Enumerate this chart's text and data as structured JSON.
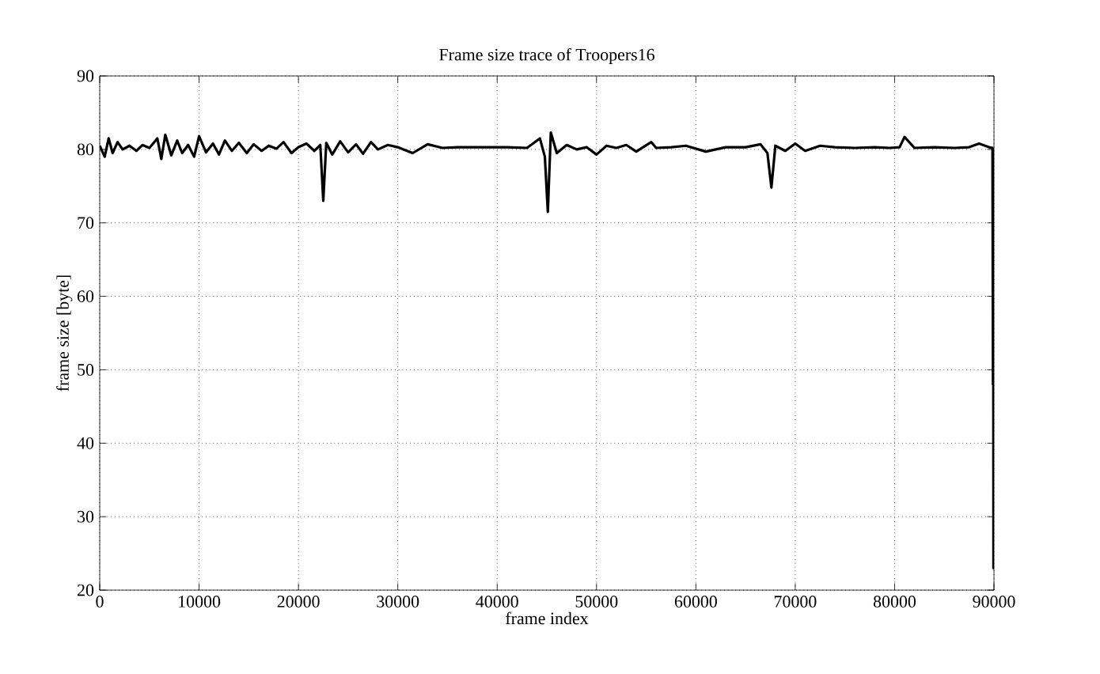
{
  "chart_data": {
    "type": "line",
    "title": "Frame size trace of Troopers16",
    "xlabel": "frame index",
    "ylabel": "frame size [byte]",
    "xlim": [
      0,
      90000
    ],
    "ylim": [
      20,
      90
    ],
    "xticks": [
      0,
      10000,
      20000,
      30000,
      40000,
      50000,
      60000,
      70000,
      80000,
      90000
    ],
    "yticks": [
      20,
      30,
      40,
      50,
      60,
      70,
      80,
      90
    ],
    "grid": true,
    "marker": "none",
    "line_style": "solid",
    "series": [
      {
        "color": "#000000",
        "x": [
          0,
          500,
          900,
          1300,
          1800,
          2300,
          3000,
          3700,
          4300,
          5000,
          5800,
          6200,
          6600,
          7200,
          7800,
          8300,
          8900,
          9500,
          10000,
          10700,
          11400,
          12000,
          12600,
          13300,
          14000,
          14800,
          15500,
          16300,
          17000,
          17800,
          18500,
          19300,
          20000,
          20800,
          21600,
          22200,
          22500,
          22800,
          23400,
          24200,
          25000,
          25800,
          26500,
          27300,
          28000,
          29000,
          30000,
          31500,
          33000,
          34500,
          36000,
          37500,
          39000,
          41000,
          43000,
          44300,
          44800,
          45100,
          45400,
          46000,
          47000,
          48000,
          49000,
          50000,
          51000,
          52000,
          53000,
          54000,
          55500,
          56000,
          57500,
          59000,
          61000,
          63000,
          65000,
          66500,
          67200,
          67600,
          68000,
          69000,
          70000,
          71000,
          72500,
          74000,
          76000,
          78000,
          79500,
          80500,
          81000,
          82000,
          84000,
          86000,
          87500,
          88500,
          89500,
          89850,
          89900,
          89920,
          89950,
          89970,
          90000
        ],
        "values": [
          80.5,
          79,
          81.5,
          79.5,
          81,
          80,
          80.5,
          79.8,
          80.6,
          80.2,
          81.5,
          78.7,
          82,
          79.2,
          81.2,
          79.5,
          80.6,
          79,
          81.8,
          79.6,
          80.8,
          79.3,
          81.2,
          79.8,
          80.9,
          79.5,
          80.7,
          79.8,
          80.5,
          80.1,
          81,
          79.5,
          80.3,
          80.8,
          79.8,
          80.6,
          73,
          80.9,
          79.3,
          81.1,
          79.6,
          80.7,
          79.4,
          81,
          80,
          80.6,
          80.3,
          79.5,
          80.7,
          80.2,
          80.3,
          80.3,
          80.3,
          80.3,
          80.2,
          81.5,
          79,
          71.5,
          82.3,
          79.5,
          80.6,
          80,
          80.3,
          79.3,
          80.5,
          80.2,
          80.6,
          79.7,
          81,
          80.2,
          80.3,
          80.5,
          79.7,
          80.3,
          80.3,
          80.7,
          79.5,
          74.8,
          80.5,
          79.8,
          80.8,
          79.8,
          80.5,
          80.3,
          80.2,
          80.3,
          80.2,
          80.3,
          81.7,
          80.2,
          80.3,
          80.2,
          80.3,
          80.8,
          80.3,
          80.2,
          48,
          80,
          23,
          33,
          23
        ]
      }
    ]
  }
}
